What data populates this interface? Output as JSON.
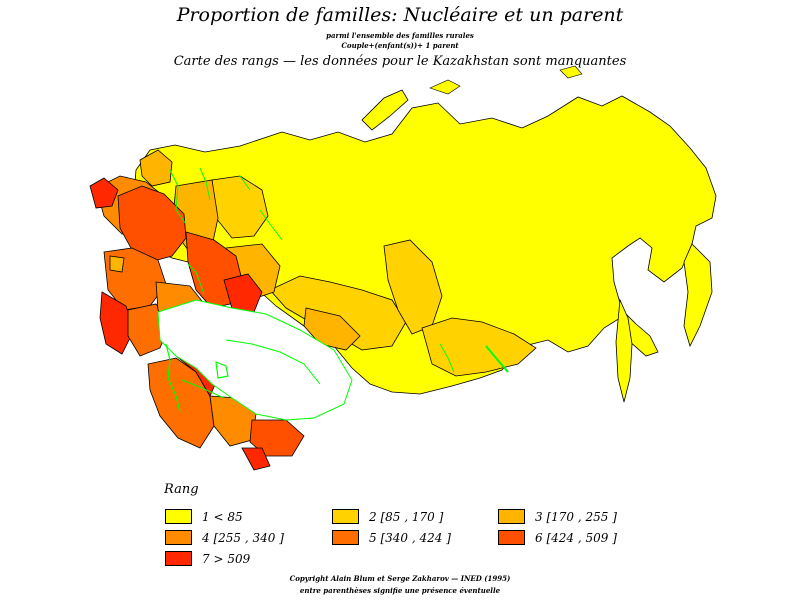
{
  "header": {
    "title": "Proportion de familles: Nucléaire et un parent",
    "subtitle_1": "parmi l'ensemble des familles rurales",
    "subtitle_2": "Couple+(enfant(s))+ 1 parent",
    "subtitle_3": "Carte des rangs — les données pour le Kazakhstan sont manquantes"
  },
  "legend": {
    "title": "Rang",
    "items": [
      {
        "label": "1  <  85",
        "color": "#ffff00"
      },
      {
        "label": "2 [85 ,  170 ]",
        "color": "#ffd200"
      },
      {
        "label": "3 [170 ,  255 ]",
        "color": "#ffb400"
      },
      {
        "label": "4 [255 ,  340 ]",
        "color": "#ff8c00"
      },
      {
        "label": "5 [340 ,  424 ]",
        "color": "#ff6e00"
      },
      {
        "label": "6 [424 ,  509 ]",
        "color": "#ff5000"
      },
      {
        "label": "7  >  509",
        "color": "#ff2800"
      }
    ]
  },
  "map": {
    "no_data_color": "#ffffff",
    "water_color": "#00ff00",
    "border_color": "#000000"
  },
  "footer": {
    "line_1": "Copyright Alain Blum et Serge Zakharov — INED (1995)",
    "line_2": "entre parenthèses signifie une présence éventuelle"
  }
}
